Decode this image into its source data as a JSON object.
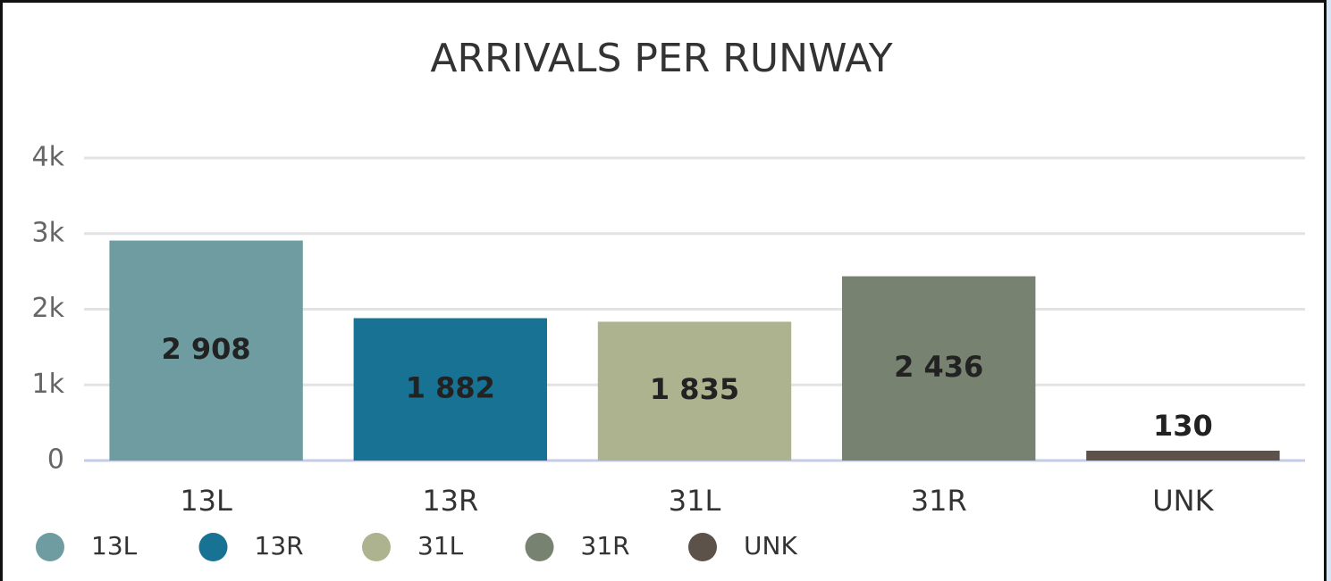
{
  "chart_data": {
    "type": "bar",
    "title": "ARRIVALS PER RUNWAY",
    "categories": [
      "13L",
      "13R",
      "31L",
      "31R",
      "UNK"
    ],
    "values": [
      2908,
      1882,
      1835,
      2436,
      130
    ],
    "value_labels": [
      "2 908",
      "1 882",
      "1 835",
      "2 436",
      "130"
    ],
    "colors": [
      "#6e9ca1",
      "#177293",
      "#adb38e",
      "#788270",
      "#5c5249"
    ],
    "ylim": [
      0,
      4000
    ],
    "yticks": [
      0,
      {
        "value": 1000,
        "label": "1k"
      },
      {
        "value": 2000,
        "label": "2k"
      },
      {
        "value": 3000,
        "label": "3k"
      },
      {
        "value": 4000,
        "label": "4k"
      }
    ],
    "grid": true,
    "legend": "bottom-left"
  }
}
